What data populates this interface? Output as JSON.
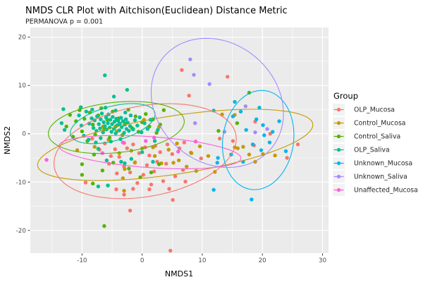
{
  "title": "NMDS CLR Plot with Aitchison(Euclidean) Distance Metric",
  "subtitle": "PERMANOVA p = 0.001",
  "chart_data": {
    "type": "scatter",
    "title": "NMDS CLR Plot with Aitchison(Euclidean) Distance Metric",
    "subtitle": "PERMANOVA p = 0.001",
    "xlabel": "NMDS1",
    "ylabel": "NMDS2",
    "legend_title": "Group",
    "xlim": [
      -18.6,
      31.0
    ],
    "ylim": [
      -24.7,
      22.0
    ],
    "x_ticks": [
      -10,
      0,
      10,
      20,
      30
    ],
    "y_ticks": [
      -20,
      -10,
      0,
      10,
      20
    ],
    "x_minor_ticks": [
      -15,
      -5,
      5,
      15,
      25
    ],
    "y_minor_ticks": [
      -15,
      -5,
      5,
      15
    ],
    "grid": true,
    "legend_position": "right",
    "panel_bg": "#EBEBEB",
    "grid_color": "#FFFFFF",
    "tick_label_color": "#4D4D4D",
    "legend_key_bg": "#F2F2F2",
    "series": [
      {
        "name": "OLP_Mucosa",
        "color": "#F8766D",
        "ellipse": {
          "cx": 0.5,
          "cy": -3.6,
          "a": 15.5,
          "b": 9.3,
          "angle_deg": 15
        },
        "points": [
          [
            6.6,
            13.2
          ],
          [
            14.2,
            11.8
          ],
          [
            7.8,
            7.9
          ],
          [
            -8.3,
            -1.0
          ],
          [
            -7.1,
            -3.3
          ],
          [
            -6.2,
            -2.0
          ],
          [
            -5.2,
            -4.6
          ],
          [
            -4.5,
            -3.2
          ],
          [
            -3.8,
            -4.8
          ],
          [
            -3.0,
            -1.9
          ],
          [
            -2.5,
            -3.0
          ],
          [
            -1.5,
            -2.2
          ],
          [
            -0.5,
            -4.0
          ],
          [
            0.5,
            -2.8
          ],
          [
            1.2,
            -4.5
          ],
          [
            2.2,
            -2.5
          ],
          [
            3.0,
            -3.8
          ],
          [
            4.2,
            -2.2
          ],
          [
            5.0,
            -4.2
          ],
          [
            6.2,
            -3.0
          ],
          [
            7.0,
            -1.8
          ],
          [
            8.1,
            -3.9
          ],
          [
            -5.5,
            -6.2
          ],
          [
            -3.0,
            -6.8
          ],
          [
            -1.2,
            -6.0
          ],
          [
            0.8,
            -6.5
          ],
          [
            2.5,
            -5.8
          ],
          [
            4.0,
            -6.2
          ],
          [
            -4.2,
            -8.2
          ],
          [
            -2.0,
            -8.0
          ],
          [
            0.2,
            -8.5
          ],
          [
            2.0,
            -7.8
          ],
          [
            3.5,
            -9.8
          ],
          [
            -0.8,
            -10.2
          ],
          [
            1.5,
            -10.5
          ],
          [
            5.5,
            -8.8
          ],
          [
            6.8,
            -7.5
          ],
          [
            7.2,
            -9.9
          ],
          [
            9.8,
            -5.1
          ],
          [
            -1.5,
            -11.4
          ],
          [
            1.2,
            -11.5
          ],
          [
            4.5,
            -11.4
          ],
          [
            -2.0,
            -15.9
          ],
          [
            4.7,
            -24.2
          ],
          [
            5.1,
            -13.7
          ],
          [
            -4.3,
            -11.5
          ],
          [
            -9.4,
            -10.1
          ],
          [
            -3.0,
            -12.6
          ],
          [
            12.9,
            -1.0
          ],
          [
            15.1,
            -1.5
          ],
          [
            18.8,
            2.5
          ],
          [
            18.6,
            -2.4
          ],
          [
            21.3,
            0.0
          ],
          [
            24.1,
            -5.0
          ],
          [
            25.9,
            -2.2
          ]
        ]
      },
      {
        "name": "Control_Mucosa",
        "color": "#C49A00",
        "ellipse": {
          "cx": 5.5,
          "cy": -2.3,
          "a": 23.3,
          "b": 6.0,
          "angle_deg": 11
        },
        "points": [
          [
            -10.8,
            -3.4
          ],
          [
            -7.9,
            -2.7
          ],
          [
            -6.5,
            1.5
          ],
          [
            -5.6,
            -1.2
          ],
          [
            -4.2,
            0.5
          ],
          [
            -3.8,
            -4.0
          ],
          [
            -2.9,
            -7.3
          ],
          [
            -2.8,
            2.2
          ],
          [
            -1.8,
            -3.5
          ],
          [
            -1.5,
            1.0
          ],
          [
            -1.2,
            -5.9
          ],
          [
            0.0,
            -3.0
          ],
          [
            0.3,
            2.9
          ],
          [
            1.8,
            -2.8
          ],
          [
            2.1,
            -4.6
          ],
          [
            2.8,
            1.4
          ],
          [
            3.2,
            -6.1
          ],
          [
            4.4,
            -3.3
          ],
          [
            5.2,
            -6.0
          ],
          [
            5.8,
            -2.0
          ],
          [
            6.1,
            -5.5
          ],
          [
            7.4,
            -6.8
          ],
          [
            8.2,
            -4.0
          ],
          [
            9.0,
            -7.7
          ],
          [
            9.6,
            -2.6
          ],
          [
            11.0,
            -4.6
          ],
          [
            13.3,
            4.0
          ],
          [
            15.4,
            3.9
          ],
          [
            15.4,
            -2.8
          ],
          [
            15.9,
            -3.0
          ],
          [
            16.8,
            -2.7
          ],
          [
            17.8,
            -4.3
          ],
          [
            18.8,
            -5.8
          ],
          [
            20.1,
            -4.2
          ],
          [
            22.1,
            -4.5
          ],
          [
            12.1,
            -7.9
          ],
          [
            -3.2,
            -9.2
          ],
          [
            -3.0,
            -11.8
          ]
        ]
      },
      {
        "name": "Control_Saliva",
        "color": "#53B400",
        "ellipse": {
          "cx": -4.3,
          "cy": 1.3,
          "a": 11.4,
          "b": 5.2,
          "angle_deg": 8
        },
        "points": [
          [
            -12.6,
            1.5
          ],
          [
            -12.0,
            3.9
          ],
          [
            -11.5,
            -0.6
          ],
          [
            -11.0,
            2.6
          ],
          [
            -10.4,
            4.9
          ],
          [
            -10.0,
            0.5
          ],
          [
            -9.6,
            3.1
          ],
          [
            -9.1,
            -1.5
          ],
          [
            -8.7,
            4.4
          ],
          [
            -8.2,
            1.9
          ],
          [
            -7.8,
            -0.2
          ],
          [
            -7.3,
            3.8
          ],
          [
            -6.8,
            5.3
          ],
          [
            -6.3,
            0.9
          ],
          [
            -5.8,
            2.9
          ],
          [
            -5.4,
            -0.8
          ],
          [
            -4.9,
            4.6
          ],
          [
            -4.4,
            1.5
          ],
          [
            -3.9,
            3.2
          ],
          [
            -3.3,
            -0.3
          ],
          [
            -2.8,
            2.0
          ],
          [
            -2.3,
            5.0
          ],
          [
            -1.7,
            1.2
          ],
          [
            -1.1,
            3.6
          ],
          [
            -0.6,
            0.4
          ],
          [
            0.0,
            2.4
          ],
          [
            0.6,
            4.1
          ],
          [
            1.2,
            1.5
          ],
          [
            1.8,
            3.0
          ],
          [
            2.4,
            0.2
          ],
          [
            3.0,
            1.9
          ],
          [
            3.6,
            4.9
          ],
          [
            -10.0,
            -6.3
          ],
          [
            -10.0,
            -8.5
          ],
          [
            -8.0,
            -4.3
          ],
          [
            -6.6,
            -7.6
          ],
          [
            -4.8,
            -6.0
          ],
          [
            -2.2,
            -7.2
          ],
          [
            -0.3,
            -9.0
          ],
          [
            1.5,
            -8.0
          ],
          [
            -8.2,
            -10.3
          ],
          [
            2.8,
            -6.3
          ],
          [
            12.7,
            0.6
          ],
          [
            15.8,
            2.2
          ],
          [
            17.8,
            8.5
          ],
          [
            -6.3,
            -19.1
          ]
        ]
      },
      {
        "name": "OLP_Saliva",
        "color": "#00C094",
        "ellipse": {
          "cx": -4.9,
          "cy": 2.1,
          "a": 7.4,
          "b": 3.5,
          "angle_deg": 20
        },
        "points": [
          [
            -8.8,
            2.1
          ],
          [
            -8.4,
            3.2
          ],
          [
            -8.1,
            1.2
          ],
          [
            -7.9,
            2.8
          ],
          [
            -7.6,
            0.6
          ],
          [
            -7.5,
            3.6
          ],
          [
            -7.2,
            2.0
          ],
          [
            -7.0,
            1.1
          ],
          [
            -6.9,
            3.0
          ],
          [
            -6.7,
            4.2
          ],
          [
            -6.5,
            0.3
          ],
          [
            -6.4,
            2.4
          ],
          [
            -6.2,
            1.6
          ],
          [
            -6.0,
            3.4
          ],
          [
            -5.9,
            0.9
          ],
          [
            -5.7,
            2.2
          ],
          [
            -5.6,
            4.0
          ],
          [
            -5.4,
            1.3
          ],
          [
            -5.3,
            2.9
          ],
          [
            -5.1,
            0.4
          ],
          [
            -5.0,
            2.0
          ],
          [
            -4.9,
            3.5
          ],
          [
            -4.7,
            1.0
          ],
          [
            -4.6,
            2.5
          ],
          [
            -4.4,
            0.1
          ],
          [
            -4.3,
            3.1
          ],
          [
            -4.1,
            1.8
          ],
          [
            -4.0,
            2.7
          ],
          [
            -3.8,
            0.7
          ],
          [
            -3.7,
            2.1
          ],
          [
            -3.5,
            3.3
          ],
          [
            -3.4,
            1.4
          ],
          [
            -3.2,
            2.6
          ],
          [
            -3.0,
            0.2
          ],
          [
            -2.9,
            1.9
          ],
          [
            -2.7,
            3.0
          ],
          [
            -2.6,
            1.0
          ],
          [
            -2.4,
            2.3
          ],
          [
            -2.2,
            0.6
          ],
          [
            -2.0,
            1.6
          ],
          [
            -10.5,
            3.8
          ],
          [
            -10.1,
            1.7
          ],
          [
            -9.7,
            -0.4
          ],
          [
            -9.3,
            4.6
          ],
          [
            -8.9,
            -1.2
          ],
          [
            -8.3,
            5.0
          ],
          [
            -7.7,
            -1.8
          ],
          [
            -6.9,
            -0.9
          ],
          [
            -6.1,
            5.4
          ],
          [
            -5.2,
            -1.6
          ],
          [
            -4.4,
            4.8
          ],
          [
            -3.6,
            -1.1
          ],
          [
            -2.8,
            4.4
          ],
          [
            -1.9,
            3.8
          ],
          [
            -1.5,
            0.9
          ],
          [
            -1.2,
            2.8
          ],
          [
            -0.8,
            1.7
          ],
          [
            -0.4,
            3.4
          ],
          [
            -0.1,
            0.3
          ],
          [
            0.4,
            2.2
          ],
          [
            0.9,
            1.0
          ],
          [
            1.4,
            2.9
          ],
          [
            -13.4,
            2.2
          ],
          [
            -13.1,
            5.1
          ],
          [
            -12.9,
            0.8
          ],
          [
            -10.2,
            5.5
          ],
          [
            -6.2,
            12.1
          ],
          [
            -4.7,
            7.7
          ],
          [
            -2.5,
            9.1
          ],
          [
            -7.3,
            -3.1
          ],
          [
            -5.9,
            -5.5
          ],
          [
            -3.5,
            -5.8
          ],
          [
            -2.9,
            -6.1
          ],
          [
            -1.8,
            -5.2
          ],
          [
            0.0,
            -3.8
          ],
          [
            1.8,
            -5.8
          ],
          [
            2.1,
            -1.5
          ],
          [
            2.6,
            0.8
          ],
          [
            -7.3,
            -10.9
          ],
          [
            -5.7,
            -10.7
          ]
        ]
      },
      {
        "name": "Unknown_Mucosa",
        "color": "#00B6EB",
        "ellipse": {
          "cx": 19.3,
          "cy": -1.3,
          "a": 10.3,
          "b": 5.9,
          "angle_deg": 85
        },
        "points": [
          [
            11.9,
            4.8
          ],
          [
            15.4,
            6.6
          ],
          [
            19.5,
            5.4
          ],
          [
            16.4,
            4.6
          ],
          [
            15.1,
            3.6
          ],
          [
            19.0,
            3.0
          ],
          [
            22.8,
            2.6
          ],
          [
            20.1,
            1.8
          ],
          [
            17.3,
            0.8
          ],
          [
            21.7,
            0.4
          ],
          [
            20.3,
            -0.3
          ],
          [
            21.2,
            -1.8
          ],
          [
            18.4,
            -2.2
          ],
          [
            19.8,
            -3.4
          ],
          [
            23.9,
            -3.6
          ],
          [
            14.8,
            -4.3
          ],
          [
            12.6,
            -5.0
          ],
          [
            12.5,
            -6.0
          ],
          [
            16.8,
            -5.8
          ],
          [
            11.9,
            -11.6
          ],
          [
            18.2,
            -13.6
          ]
        ]
      },
      {
        "name": "Unknown_Saliva",
        "color": "#A58AFF",
        "ellipse": {
          "cx": 12.5,
          "cy": 6.4,
          "a": 13.7,
          "b": 10.6,
          "angle_deg": 110
        },
        "points": [
          [
            8.0,
            15.4
          ],
          [
            8.6,
            12.2
          ],
          [
            11.2,
            10.3
          ],
          [
            17.2,
            5.7
          ],
          [
            8.8,
            2.2
          ],
          [
            13.7,
            0.4
          ],
          [
            18.8,
            0.3
          ],
          [
            20.8,
            1.0
          ]
        ]
      },
      {
        "name": "Unaffected_Mucosa",
        "color": "#FB61D7",
        "ellipse": {
          "cx": 1.3,
          "cy": -3.8,
          "a": 15.2,
          "b": 3.2,
          "angle_deg": -5
        },
        "points": [
          [
            -15.9,
            -5.4
          ],
          [
            -6.6,
            -4.0
          ],
          [
            -3.2,
            -1.8
          ],
          [
            0.6,
            -1.5
          ],
          [
            6.0,
            -3.7
          ],
          [
            8.9,
            -1.6
          ],
          [
            2.0,
            -0.8
          ]
        ]
      }
    ]
  }
}
